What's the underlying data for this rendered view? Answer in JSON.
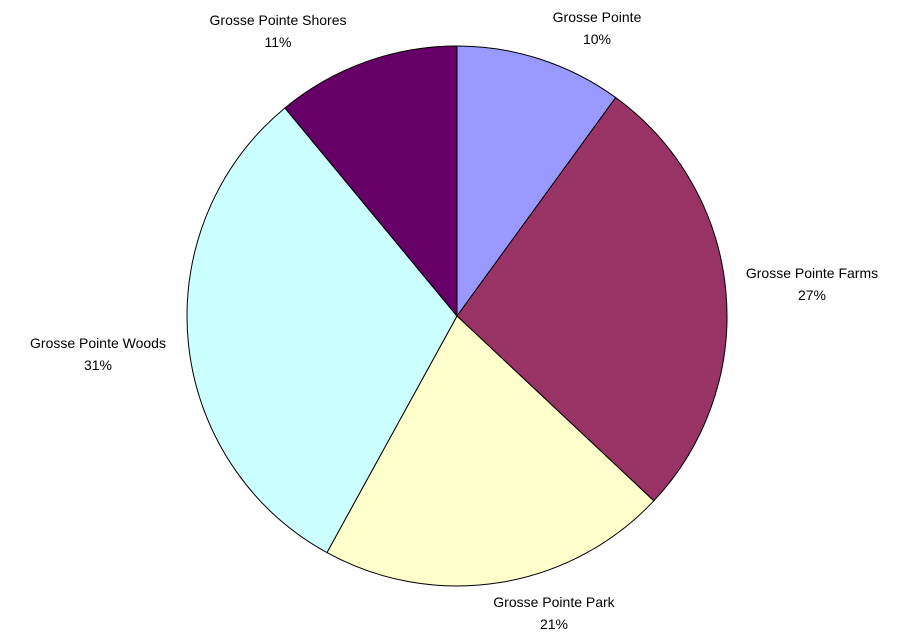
{
  "chart_data": {
    "type": "pie",
    "title": "",
    "legend": "none",
    "start_angle_deg": 0,
    "direction": "clockwise",
    "slices": [
      {
        "name": "Grosse Pointe",
        "value": 10,
        "label": "10%",
        "color": "#9999ff"
      },
      {
        "name": "Grosse Pointe Farms",
        "value": 27,
        "label": "27%",
        "color": "#993366"
      },
      {
        "name": "Grosse Pointe Park",
        "value": 21,
        "label": "21%",
        "color": "#ffffcc"
      },
      {
        "name": "Grosse Pointe Woods",
        "value": 31,
        "label": "31%",
        "color": "#ccffff"
      },
      {
        "name": "Grosse Pointe Shores",
        "value": 11,
        "label": "11%",
        "color": "#660066"
      }
    ]
  }
}
